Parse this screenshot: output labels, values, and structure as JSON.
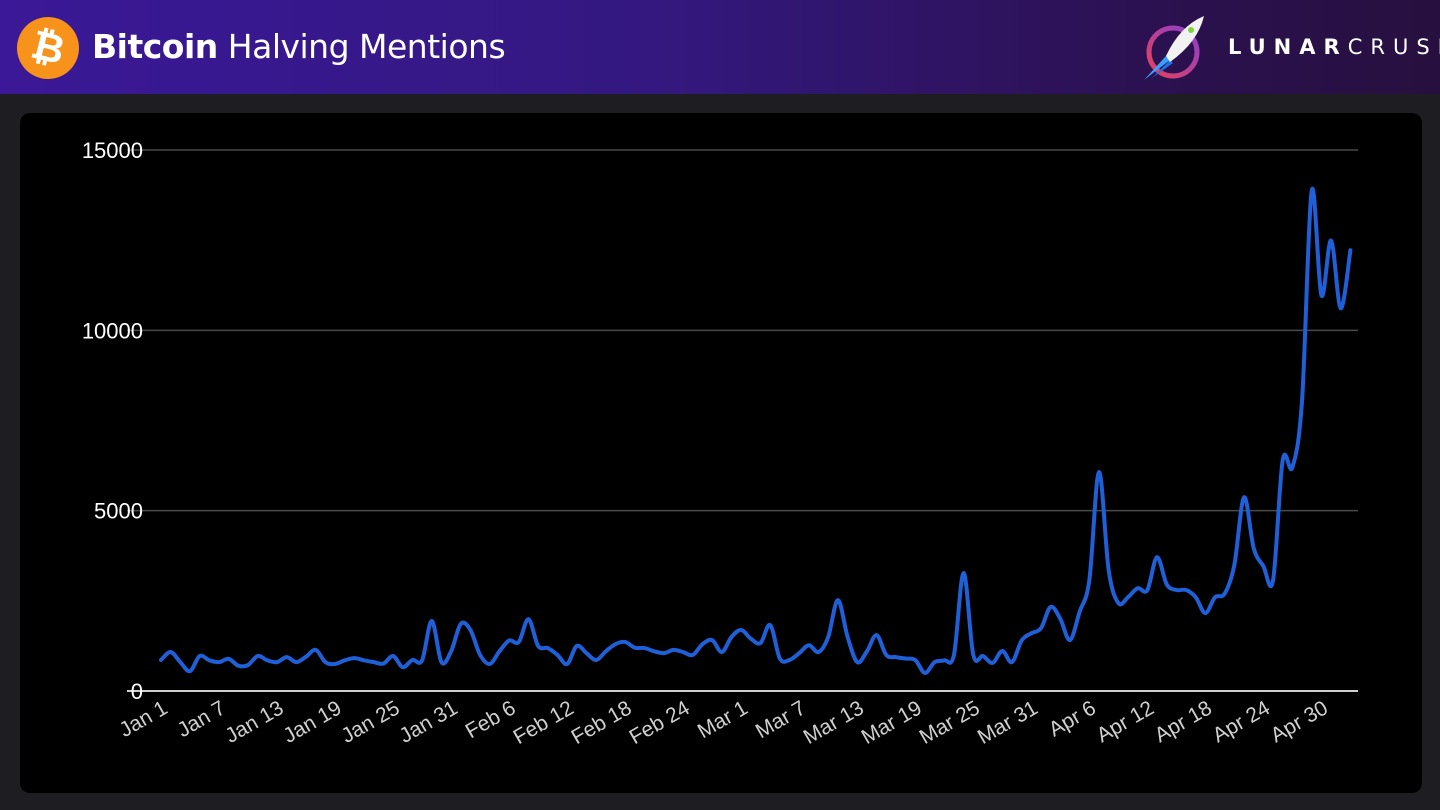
{
  "header": {
    "title_bold": "Bitcoin",
    "title_rest": "Halving Mentions",
    "icon": "bitcoin-icon",
    "brand_bold": "LUNAR",
    "brand_rest": "CRUSH",
    "brand_icon": "rocket-logo-icon"
  },
  "colors": {
    "line": "#1f60d8",
    "btc": "#f7931a",
    "grid": "#4a4a4a",
    "baseline": "#cfcfcf"
  },
  "chart_data": {
    "type": "line",
    "title": "Bitcoin Halving Mentions",
    "xlabel": "",
    "ylabel": "",
    "ylim": [
      0,
      15000
    ],
    "yticks": [
      0,
      5000,
      10000,
      15000
    ],
    "ytick_labels": [
      "0",
      "5000",
      "10000",
      "15000"
    ],
    "x_unit": "day index from Jan 1",
    "xticks": [
      0,
      6,
      12,
      18,
      24,
      30,
      36,
      42,
      48,
      54,
      60,
      66,
      72,
      78,
      84,
      90,
      96,
      102,
      108,
      114,
      120
    ],
    "xtick_labels": [
      "Jan 1",
      "Jan 7",
      "Jan 13",
      "Jan 19",
      "Jan 25",
      "Jan 31",
      "Feb 6",
      "Feb 12",
      "Feb 18",
      "Feb 24",
      "Mar 1",
      "Mar 7",
      "Mar 13",
      "Mar 19",
      "Mar 25",
      "Mar 31",
      "Apr 6",
      "Apr 12",
      "Apr 18",
      "Apr 24",
      "Apr 30"
    ],
    "grid": true,
    "series": [
      {
        "name": "Mentions",
        "values": [
          860,
          1080,
          800,
          550,
          970,
          850,
          800,
          890,
          700,
          720,
          970,
          850,
          800,
          940,
          800,
          950,
          1140,
          800,
          750,
          850,
          910,
          850,
          800,
          760,
          970,
          660,
          860,
          850,
          1940,
          800,
          1100,
          1860,
          1690,
          1000,
          750,
          1100,
          1400,
          1360,
          1990,
          1250,
          1190,
          1000,
          750,
          1250,
          1050,
          860,
          1100,
          1300,
          1360,
          1200,
          1190,
          1100,
          1050,
          1140,
          1080,
          1000,
          1300,
          1410,
          1080,
          1500,
          1690,
          1450,
          1330,
          1830,
          900,
          860,
          1050,
          1270,
          1080,
          1500,
          2520,
          1500,
          800,
          1100,
          1550,
          1000,
          940,
          900,
          860,
          500,
          800,
          850,
          1000,
          3270,
          1000,
          970,
          780,
          1110,
          800,
          1400,
          1600,
          1740,
          2330,
          2000,
          1410,
          2200,
          3070,
          6070,
          3350,
          2440,
          2600,
          2850,
          2800,
          3710,
          2960,
          2800,
          2800,
          2600,
          2160,
          2600,
          2700,
          3500,
          5370,
          3960,
          3460,
          3070,
          6400,
          6200,
          8060,
          13880,
          10970,
          12490,
          10610,
          12220
        ]
      }
    ]
  }
}
